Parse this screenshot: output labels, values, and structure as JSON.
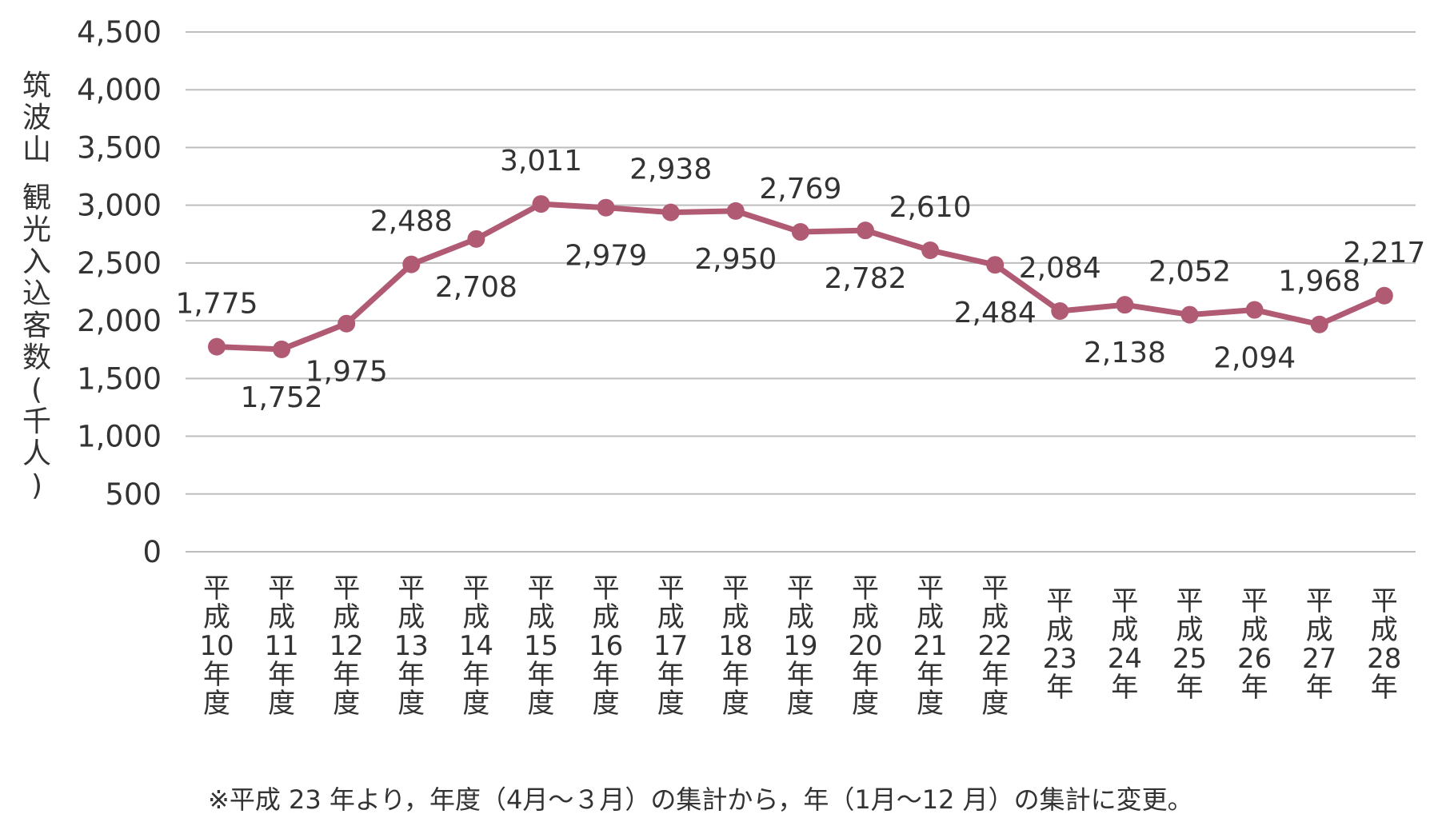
{
  "chart_data": {
    "type": "line",
    "ylabel_top": [
      "筑",
      "波",
      "山"
    ],
    "ylabel_bottom": [
      "観",
      "光",
      "入",
      "込",
      "客",
      "数",
      "(",
      "千",
      "人",
      ")"
    ],
    "ylim": [
      0,
      4500
    ],
    "yticks": [
      "0",
      "500",
      "1,000",
      "1,500",
      "2,000",
      "2,500",
      "3,000",
      "3,500",
      "4,000",
      "4,500"
    ],
    "grid": true,
    "categories": [
      [
        "平",
        "成",
        "10",
        "年",
        "度"
      ],
      [
        "平",
        "成",
        "11",
        "年",
        "度"
      ],
      [
        "平",
        "成",
        "12",
        "年",
        "度"
      ],
      [
        "平",
        "成",
        "13",
        "年",
        "度"
      ],
      [
        "平",
        "成",
        "14",
        "年",
        "度"
      ],
      [
        "平",
        "成",
        "15",
        "年",
        "度"
      ],
      [
        "平",
        "成",
        "16",
        "年",
        "度"
      ],
      [
        "平",
        "成",
        "17",
        "年",
        "度"
      ],
      [
        "平",
        "成",
        "18",
        "年",
        "度"
      ],
      [
        "平",
        "成",
        "19",
        "年",
        "度"
      ],
      [
        "平",
        "成",
        "20",
        "年",
        "度"
      ],
      [
        "平",
        "成",
        "21",
        "年",
        "度"
      ],
      [
        "平",
        "成",
        "22",
        "年",
        "度"
      ],
      [
        "平",
        "成",
        "23",
        "年"
      ],
      [
        "平",
        "成",
        "24",
        "年"
      ],
      [
        "平",
        "成",
        "25",
        "年"
      ],
      [
        "平",
        "成",
        "26",
        "年"
      ],
      [
        "平",
        "成",
        "27",
        "年"
      ],
      [
        "平",
        "成",
        "28",
        "年"
      ]
    ],
    "values": [
      1775,
      1752,
      1975,
      2488,
      2708,
      3011,
      2979,
      2938,
      2950,
      2769,
      2782,
      2610,
      2484,
      2084,
      2138,
      2052,
      2094,
      1968,
      2217
    ],
    "data_labels": [
      "1,775",
      "1,752",
      "1,975",
      "2,488",
      "2,708",
      "3,011",
      "2,979",
      "2,938",
      "2,950",
      "2,769",
      "2,782",
      "2,610",
      "2,484",
      "2,084",
      "2,138",
      "2,052",
      "2,094",
      "1,968",
      "2,217"
    ],
    "label_positions": [
      "above",
      "below",
      "below",
      "above",
      "below",
      "above",
      "below",
      "above",
      "below",
      "above",
      "below",
      "above",
      "below",
      "above",
      "below",
      "above",
      "below",
      "above",
      "above"
    ],
    "line_color": "#b05a74",
    "grid_color": "#bdbdbd",
    "note": "※平成 23 年より，年度（4月～３月）の集計から，年（1月～12 月）の集計に変更。"
  }
}
